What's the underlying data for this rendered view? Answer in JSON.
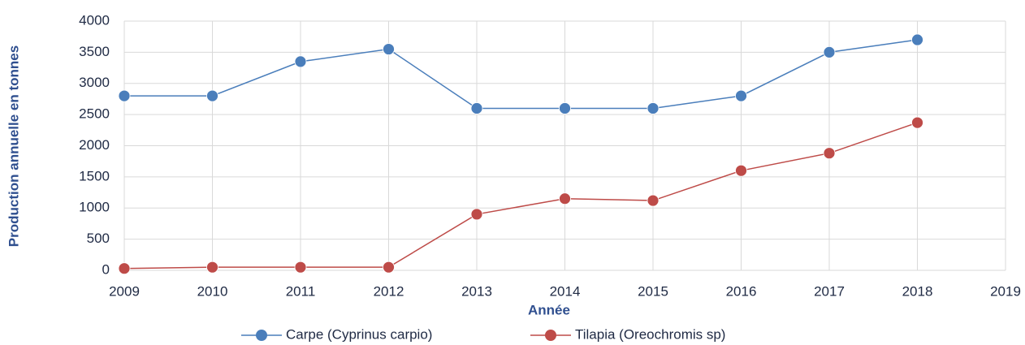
{
  "chart_data": {
    "type": "line",
    "x_label": "Année",
    "y_label": "Production annuelle en tonnes",
    "x": [
      2009,
      2010,
      2011,
      2012,
      2013,
      2014,
      2015,
      2016,
      2017,
      2018
    ],
    "series": [
      {
        "name": "Carpe (Cyprinus carpio)",
        "color": "#4a7ebb",
        "values": [
          2800,
          2800,
          3350,
          3550,
          2600,
          2600,
          2600,
          2800,
          3500,
          3700
        ]
      },
      {
        "name": "Tilapia (Oreochromis sp)",
        "color": "#be4b48",
        "values": [
          30,
          50,
          50,
          50,
          900,
          1150,
          1120,
          1600,
          1880,
          2370
        ]
      }
    ],
    "xlim": [
      2009,
      2019
    ],
    "xticks": [
      2009,
      2010,
      2011,
      2012,
      2013,
      2014,
      2015,
      2016,
      2017,
      2018,
      2019
    ],
    "ylim": [
      0,
      4000
    ],
    "yticks": [
      0,
      500,
      1000,
      1500,
      2000,
      2500,
      3000,
      3500,
      4000
    ],
    "grid": true,
    "legend": "bottom"
  }
}
